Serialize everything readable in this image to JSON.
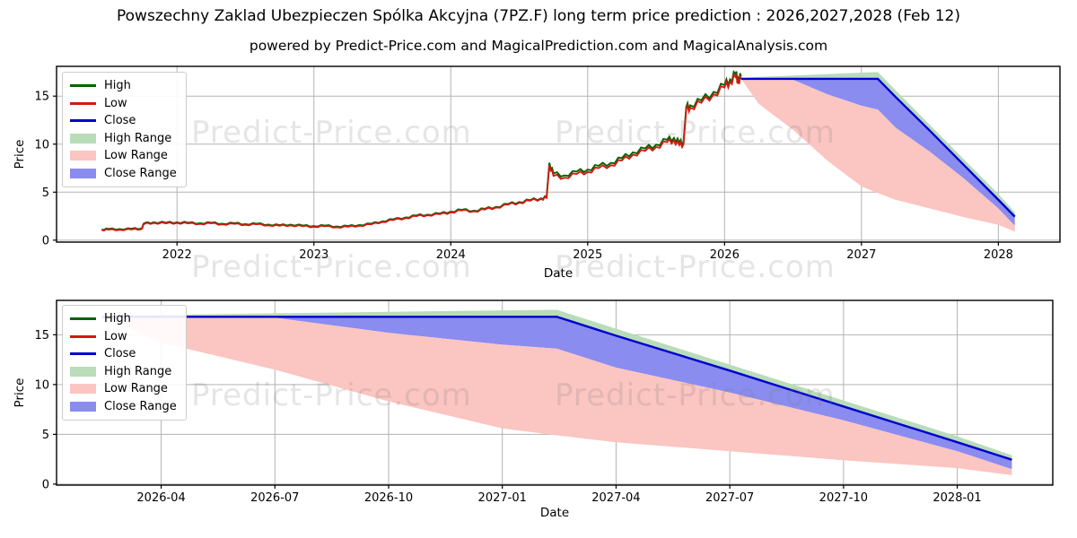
{
  "title": "Powszechny Zaklad Ubezpieczen Spólka Akcyjna (7PZ.F) long term price prediction : 2026,2027,2028 (Feb 12)",
  "subtitle": "powered by Predict-Price.com and MagicalPrediction.com and MagicalAnalysis.com",
  "watermark": "Predict-Price.com",
  "colors": {
    "high_line": "#006400",
    "low_line": "#d01a10",
    "close_line": "#0000cc",
    "high_range_fill": "#b9dcb9",
    "low_range_fill": "#fbc5c1",
    "close_range_fill": "#8a8cf0",
    "grid": "#b3b3b3",
    "axis_border": "#000000"
  },
  "chart_data": {
    "type": "line",
    "legend": [
      "High",
      "Low",
      "Close",
      "High Range",
      "Low Range",
      "Close Range"
    ],
    "history": {
      "x": [
        2021.45,
        2021.5,
        2021.58,
        2021.67,
        2021.74,
        2021.76,
        2021.83,
        2021.92,
        2022.0,
        2022.08,
        2022.17,
        2022.25,
        2022.33,
        2022.42,
        2022.5,
        2022.58,
        2022.67,
        2022.75,
        2022.83,
        2022.92,
        2023.0,
        2023.08,
        2023.17,
        2023.25,
        2023.33,
        2023.42,
        2023.5,
        2023.58,
        2023.67,
        2023.75,
        2023.83,
        2023.92,
        2024.0,
        2024.08,
        2024.17,
        2024.25,
        2024.33,
        2024.42,
        2024.5,
        2024.58,
        2024.66,
        2024.7,
        2024.72,
        2024.75,
        2024.83,
        2024.92,
        2025.0,
        2025.08,
        2025.17,
        2025.25,
        2025.33,
        2025.42,
        2025.5,
        2025.58,
        2025.63,
        2025.67,
        2025.7,
        2025.72,
        2025.75,
        2025.83,
        2025.92,
        2026.0,
        2026.04,
        2026.08,
        2026.1,
        2026.12
      ],
      "low": [
        1.05,
        1.1,
        1.08,
        1.12,
        1.15,
        1.7,
        1.8,
        1.75,
        1.8,
        1.75,
        1.7,
        1.75,
        1.65,
        1.7,
        1.6,
        1.65,
        1.55,
        1.5,
        1.55,
        1.45,
        1.4,
        1.45,
        1.35,
        1.4,
        1.5,
        1.65,
        1.9,
        2.1,
        2.3,
        2.5,
        2.6,
        2.7,
        2.9,
        3.1,
        3.0,
        3.2,
        3.4,
        3.7,
        3.9,
        4.1,
        4.3,
        4.4,
        7.8,
        6.7,
        6.5,
        6.9,
        7.1,
        7.5,
        7.8,
        8.3,
        8.9,
        9.3,
        9.7,
        10.2,
        10.4,
        9.9,
        10.0,
        13.6,
        13.8,
        14.3,
        15.2,
        15.9,
        16.5,
        17.0,
        16.6,
        16.8
      ],
      "high": [
        1.12,
        1.17,
        1.15,
        1.19,
        1.22,
        1.77,
        1.87,
        1.82,
        1.87,
        1.82,
        1.77,
        1.82,
        1.72,
        1.77,
        1.67,
        1.72,
        1.62,
        1.57,
        1.62,
        1.52,
        1.47,
        1.52,
        1.42,
        1.47,
        1.57,
        1.72,
        1.97,
        2.17,
        2.37,
        2.57,
        2.67,
        2.77,
        2.97,
        3.17,
        3.07,
        3.27,
        3.47,
        3.77,
        3.97,
        4.17,
        4.37,
        4.47,
        8.05,
        6.95,
        6.75,
        7.15,
        7.35,
        7.75,
        8.05,
        8.55,
        9.15,
        9.55,
        9.95,
        10.45,
        10.65,
        10.15,
        10.25,
        13.85,
        14.05,
        14.55,
        15.45,
        16.15,
        16.75,
        17.3,
        16.85,
        17.05
      ]
    },
    "prediction": {
      "x": [
        2026.12,
        2026.25,
        2026.5,
        2026.75,
        2027.0,
        2027.12,
        2027.25,
        2027.5,
        2027.75,
        2028.0,
        2028.12
      ],
      "close": [
        16.8,
        16.8,
        16.8,
        16.8,
        16.8,
        16.8,
        14.9,
        11.4,
        7.8,
        4.2,
        2.45
      ],
      "high_upper": [
        16.9,
        17.0,
        17.15,
        17.3,
        17.45,
        17.5,
        15.6,
        12.0,
        8.4,
        4.8,
        2.9
      ],
      "close_lower": [
        16.8,
        16.8,
        16.7,
        15.2,
        14.0,
        13.6,
        11.7,
        9.2,
        6.4,
        3.3,
        1.5
      ],
      "low_lower": [
        16.8,
        14.2,
        11.5,
        8.3,
        5.6,
        4.9,
        4.2,
        3.3,
        2.4,
        1.6,
        0.9
      ]
    },
    "charts": [
      {
        "name": "main",
        "xlabel": "Date",
        "ylabel": "Price",
        "y_ticks": [
          0,
          5,
          10,
          15
        ],
        "x_ticks": [
          {
            "v": 2022,
            "label": "2022"
          },
          {
            "v": 2023,
            "label": "2023"
          },
          {
            "v": 2024,
            "label": "2024"
          },
          {
            "v": 2025,
            "label": "2025"
          },
          {
            "v": 2026,
            "label": "2026"
          },
          {
            "v": 2027,
            "label": "2027"
          },
          {
            "v": 2028,
            "label": "2028"
          }
        ],
        "xlim": [
          2021.12,
          2028.45
        ],
        "ylim": [
          -0.2,
          18.1
        ],
        "grid": true,
        "legend_position": "upper left",
        "show_history": true
      },
      {
        "name": "forecast",
        "xlabel": "Date",
        "ylabel": "Price",
        "y_ticks": [
          0,
          5,
          10,
          15
        ],
        "x_ticks": [
          {
            "v": 2026.25,
            "label": "2026-04"
          },
          {
            "v": 2026.5,
            "label": "2026-07"
          },
          {
            "v": 2026.75,
            "label": "2026-10"
          },
          {
            "v": 2027.0,
            "label": "2027-01"
          },
          {
            "v": 2027.25,
            "label": "2027-04"
          },
          {
            "v": 2027.5,
            "label": "2027-07"
          },
          {
            "v": 2027.75,
            "label": "2027-10"
          },
          {
            "v": 2028.0,
            "label": "2028-01"
          }
        ],
        "xlim": [
          2026.02,
          2028.21
        ],
        "ylim": [
          -0.1,
          18.45
        ],
        "grid": true,
        "legend_position": "upper left",
        "show_history": false
      }
    ]
  }
}
